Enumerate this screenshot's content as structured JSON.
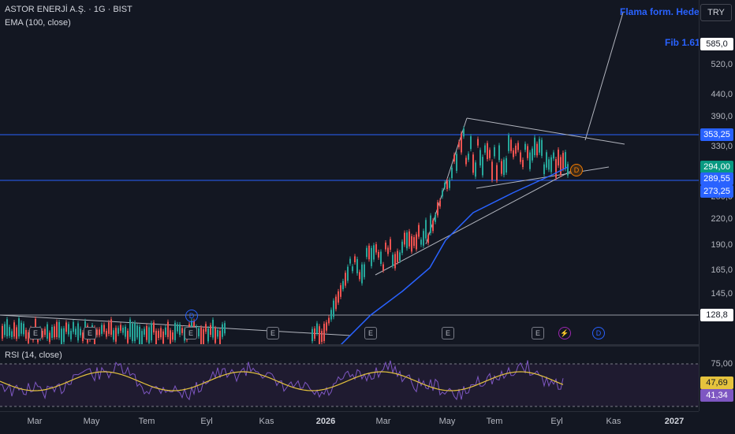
{
  "symbol": {
    "title": "ASTOR ENERJİ A.Ş. · 1G · BIST",
    "ema_legend": "EMA (100, close)"
  },
  "rsi": {
    "legend": "RSI (14, close)",
    "value": "41,34",
    "ma_value": "47,69",
    "levels": [
      "75,00"
    ]
  },
  "annotations": {
    "flag_target": "Flama form. Hedef",
    "fib": "Fib 1.61"
  },
  "currency_button": "TRY",
  "price_scale": {
    "ticks": [
      "520,0",
      "440,0",
      "390,0",
      "330,0",
      "250,0",
      "220,0",
      "190,0",
      "165,0",
      "145,0"
    ],
    "tags": {
      "fib_price": "585,0",
      "resistance": "353,25",
      "last_price": "294,00",
      "ema": "289,55",
      "support": "273,25",
      "base": "128,8"
    }
  },
  "time_axis": [
    "Mar",
    "May",
    "Tem",
    "Eyl",
    "Kas",
    "2026",
    "Mar",
    "May",
    "Tem",
    "Eyl",
    "Kas",
    "2027"
  ],
  "event_badges": {
    "earnings": "E",
    "dividend": "D"
  },
  "colors": {
    "bg": "#131722",
    "up": "#26a69a",
    "down": "#ef5350",
    "ema": "#2962ff",
    "rsi": "#7e57c2",
    "rsi_ma": "#e5c33d",
    "hline": "#2962ff",
    "trend": "#b2b5be"
  }
}
